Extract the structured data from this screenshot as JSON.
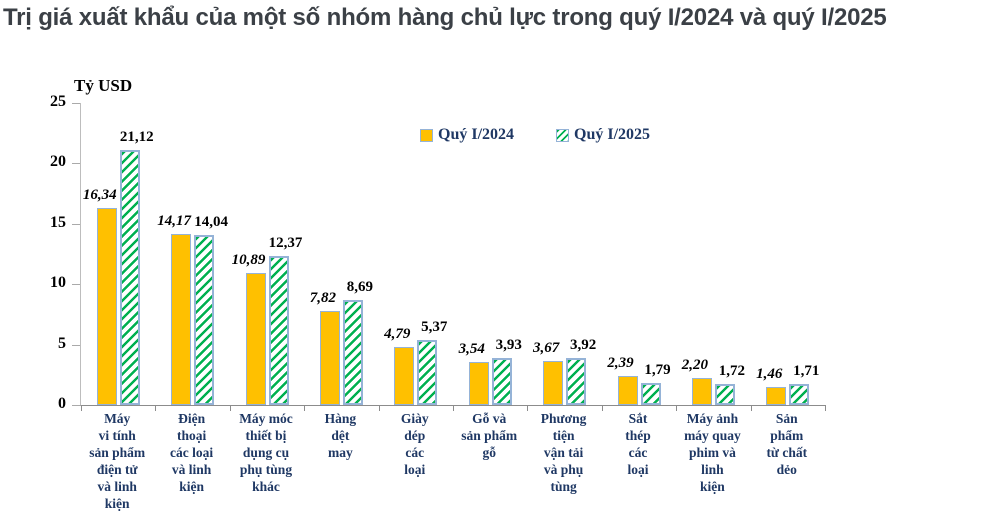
{
  "title": "Trị giá xuất khẩu của một số nhóm hàng chủ lực trong quý I/2024 và quý I/2025",
  "chart_data": {
    "type": "bar",
    "title": "Trị giá xuất khẩu của một số nhóm hàng chủ lực trong quý I/2024 và quý I/2025",
    "xlabel": "",
    "ylabel": "Tỷ USD",
    "ylim": [
      0,
      25
    ],
    "yticks": [
      0,
      5,
      10,
      15,
      20,
      25
    ],
    "grid": false,
    "legend_position": "top-center",
    "categories": [
      "Máy vi tính sản phẩm điện tử và linh kiện",
      "Điện thoại các loại và linh kiện",
      "Máy móc thiết bị dụng cụ phụ tùng khác",
      "Hàng dệt may",
      "Giày dép các loại",
      "Gỗ và sản phẩm gỗ",
      "Phương tiện vận tải và phụ tùng",
      "Sắt thép các loại",
      "Máy ảnh máy quay phim và linh kiện",
      "Sản phẩm từ chất dẻo"
    ],
    "category_display_lines": [
      "Máy\nvi tính\nsản phẩm\nđiện tử\nvà linh\nkiện",
      "Điện\nthoại\ncác loại\nvà linh\nkiện",
      "Máy móc\nthiết bị\ndụng cụ\nphụ tùng\nkhác",
      "Hàng\ndệt\nmay",
      "Giày\ndép\ncác\nloại",
      "Gỗ và\nsản phẩm\ngỗ",
      "Phương\ntiện\nvận tải\nvà phụ\ntùng",
      "Sắt\nthép\ncác\nloại",
      "Máy ảnh\nmáy quay\nphim và\nlinh\nkiện",
      "Sản\nphẩm\ntừ chất\ndẻo"
    ],
    "series": [
      {
        "name": "Quý I/2024",
        "values": [
          16.34,
          14.17,
          10.89,
          7.82,
          4.79,
          3.54,
          3.67,
          2.39,
          2.2,
          1.46
        ],
        "value_labels": [
          "16,34",
          "14,17",
          "10,89",
          "7,82",
          "4,79",
          "3,54",
          "3,67",
          "2,39",
          "2,20",
          "1,46"
        ],
        "color": "#FFC000",
        "pattern": "solid"
      },
      {
        "name": "Quý I/2025",
        "values": [
          21.12,
          14.04,
          12.37,
          8.69,
          5.37,
          3.93,
          3.92,
          1.79,
          1.72,
          1.71
        ],
        "value_labels": [
          "21,12",
          "14,04",
          "12,37",
          "8,69",
          "5,37",
          "3,93",
          "3,92",
          "1,79",
          "1,72",
          "1,71"
        ],
        "color": "#00B050",
        "pattern": "hatched"
      }
    ]
  },
  "colors": {
    "bar_2024_fill": "#FFC000",
    "bar_2025_hatch": "#00B050",
    "bar_border": "#95B3D7",
    "category_text": "#1F3864",
    "legend_text": "#1F3864",
    "value_text": "#000000",
    "title_text": "#3B4046",
    "axis_line": "#8C8C8C"
  }
}
